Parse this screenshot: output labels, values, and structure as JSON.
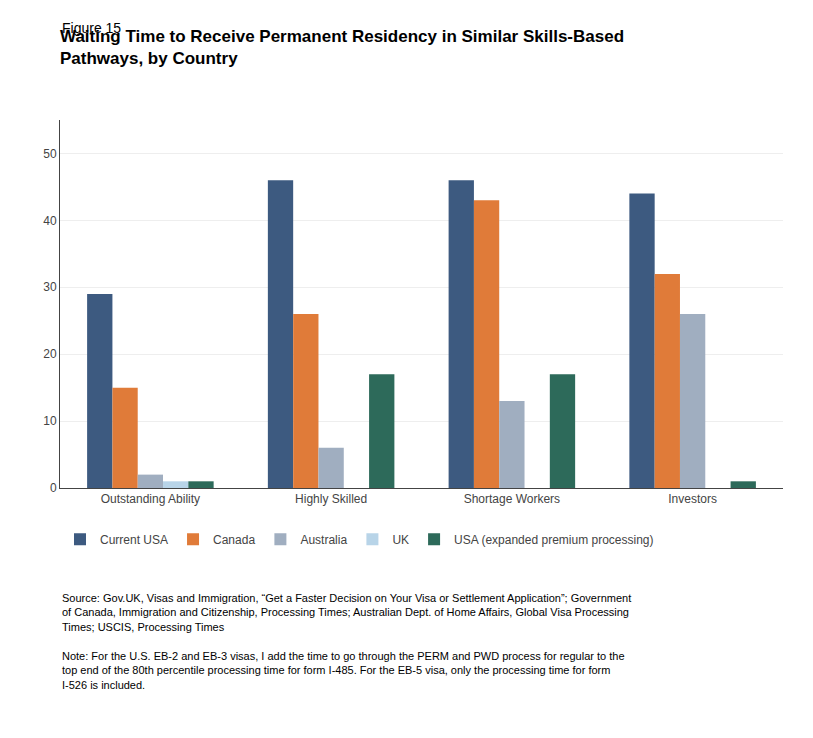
{
  "chart_data": {
    "type": "bar",
    "title": "Waiting Time to Receive Permanent Residency in Similar Skills-Based\nPathways, by Country",
    "annotations": [
      "Figure 15",
      "Source: Gov.UK, Visas and Immigration, “Get a Faster Decision on Your Visa or Settlement Application”; Government\nof Canada, Immigration and Citizenship, Processing Times; Australian Dept. of Home Affairs, Global Visa Processing\nTimes; USCIS, Processing Times",
      "Note: For the U.S. EB-2 and EB-3 visas, I add the time to go through the PERM and PWD process for regular to the\ntop end of the 80th percentile processing time for form I-485. For the EB-5 visa, only the processing time for form\nI-526 is included."
    ],
    "categories": [
      "Outstanding Ability",
      "Highly Skilled",
      "Shortage Workers",
      "Investors"
    ],
    "series": [
      {
        "name": "Current USA",
        "color": "#3d5a80",
        "values": [
          29,
          46,
          46,
          44
        ]
      },
      {
        "name": "Canada",
        "color": "#e07b39",
        "values": [
          15,
          26,
          43,
          32
        ]
      },
      {
        "name": "Australia",
        "color": "#a0aec0",
        "values": [
          2,
          6,
          13,
          26
        ]
      },
      {
        "name": "UK",
        "color": "#b8d4e8",
        "values": [
          1,
          0,
          0,
          0
        ]
      },
      {
        "name": "USA (expanded premium processing)",
        "color": "#2d6a5a",
        "values": [
          1,
          17,
          17,
          1
        ]
      }
    ],
    "ylim": [
      0,
      55
    ],
    "yticks": [
      0,
      10,
      20,
      30,
      40,
      50
    ],
    "grid": true,
    "legend": "bottom"
  }
}
